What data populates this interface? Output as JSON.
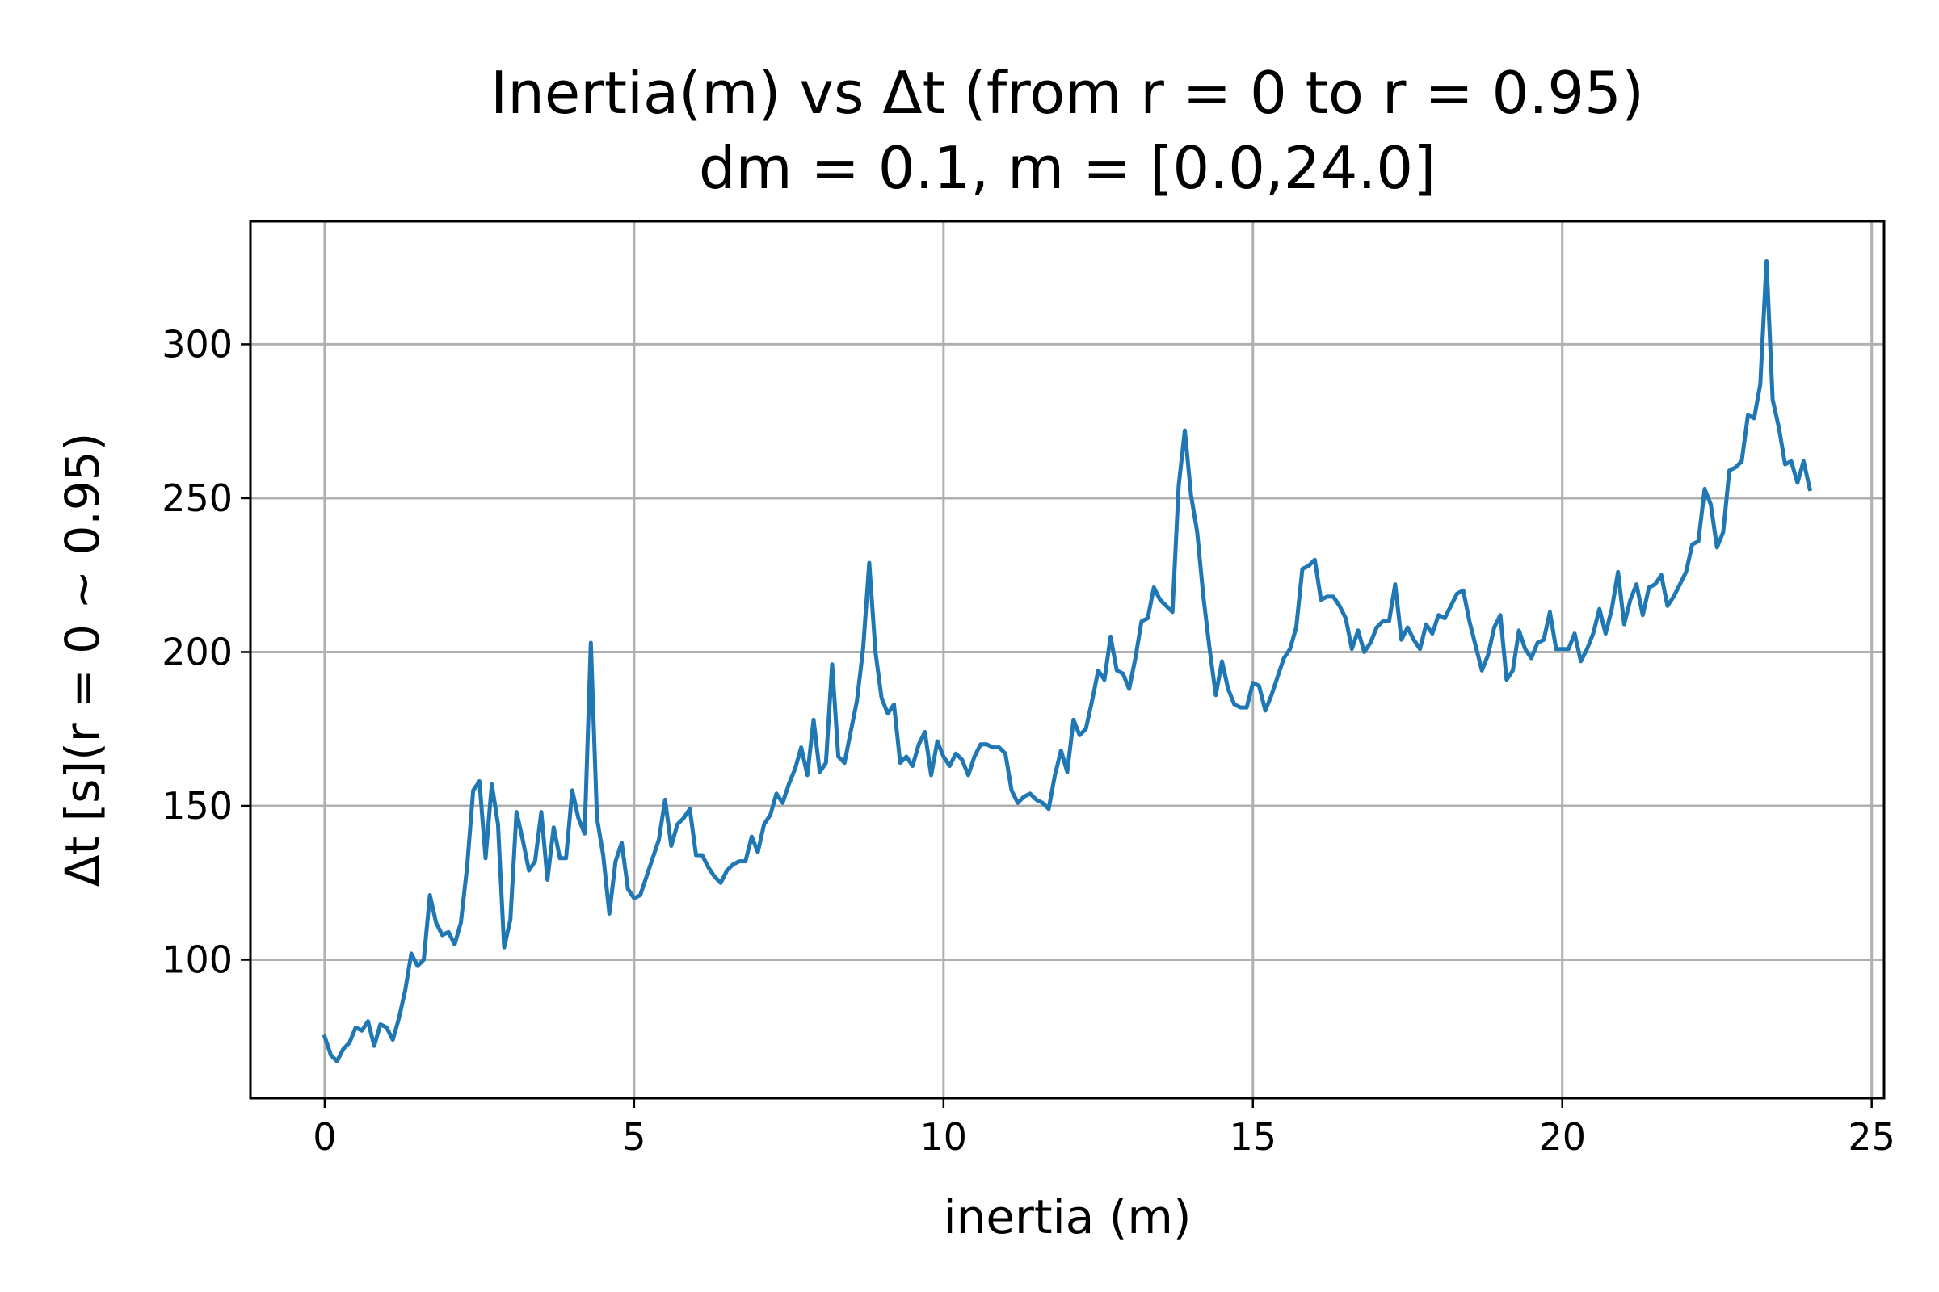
{
  "chart_data": {
    "type": "line",
    "title": "Inertia(m) vs Δt (from r = 0 to r = 0.95)",
    "subtitle": "dm = 0.1, m = [0.0,24.0]",
    "xlabel": "inertia (m)",
    "ylabel": "Δt [s](r = 0 ~ 0.95)",
    "xlim": [
      -1.2,
      25.2
    ],
    "ylim": [
      55,
      340
    ],
    "x_ticks": [
      0,
      5,
      10,
      15,
      20,
      25
    ],
    "y_ticks": [
      100,
      150,
      200,
      250,
      300
    ],
    "grid": true,
    "series_color": "#1f77b4",
    "series": [
      {
        "x": [
          0.0,
          0.1,
          0.2,
          0.3,
          0.4,
          0.5,
          0.6,
          0.7,
          0.8,
          0.9,
          1.0,
          1.1,
          1.2,
          1.3,
          1.4,
          1.5,
          1.6,
          1.7,
          1.8,
          1.9,
          2.0,
          2.1,
          2.2,
          2.3,
          2.4,
          2.5,
          2.6,
          2.7,
          2.8,
          2.9,
          3.0,
          3.1,
          3.2,
          3.3,
          3.4,
          3.5,
          3.6,
          3.7,
          3.8,
          3.9,
          4.0,
          4.1,
          4.2,
          4.3,
          4.4,
          4.5,
          4.6,
          4.7,
          4.8,
          4.9,
          5.0,
          5.1,
          5.2,
          5.3,
          5.4,
          5.5,
          5.6,
          5.7,
          5.8,
          5.9,
          6.0,
          6.1,
          6.2,
          6.3,
          6.4,
          6.5,
          6.6,
          6.7,
          6.8,
          6.9,
          7.0,
          7.1,
          7.2,
          7.3,
          7.4,
          7.5,
          7.6,
          7.7,
          7.8,
          7.9,
          8.0,
          8.1,
          8.2,
          8.3,
          8.4,
          8.5,
          8.6,
          8.7,
          8.8,
          8.9,
          9.0,
          9.1,
          9.2,
          9.3,
          9.4,
          9.5,
          9.6,
          9.7,
          9.8,
          9.9,
          10.0,
          10.1,
          10.2,
          10.3,
          10.4,
          10.5,
          10.6,
          10.7,
          10.8,
          10.9,
          11.0,
          11.1,
          11.2,
          11.3,
          11.4,
          11.5,
          11.6,
          11.7,
          11.8,
          11.9,
          12.0,
          12.1,
          12.2,
          12.3,
          12.4,
          12.5,
          12.6,
          12.7,
          12.8,
          12.9,
          13.0,
          13.1,
          13.2,
          13.3,
          13.4,
          13.5,
          13.6,
          13.7,
          13.8,
          13.9,
          14.0,
          14.1,
          14.2,
          14.3,
          14.4,
          14.5,
          14.6,
          14.7,
          14.8,
          14.9,
          15.0,
          15.1,
          15.2,
          15.3,
          15.4,
          15.5,
          15.6,
          15.7,
          15.8,
          15.9,
          16.0,
          16.1,
          16.2,
          16.3,
          16.4,
          16.5,
          16.6,
          16.7,
          16.8,
          16.9,
          17.0,
          17.1,
          17.2,
          17.3,
          17.4,
          17.5,
          17.6,
          17.7,
          17.8,
          17.9,
          18.0,
          18.1,
          18.2,
          18.3,
          18.4,
          18.5,
          18.6,
          18.7,
          18.8,
          18.9,
          19.0,
          19.1,
          19.2,
          19.3,
          19.4,
          19.5,
          19.6,
          19.7,
          19.8,
          19.9,
          20.0,
          20.1,
          20.2,
          20.3,
          20.4,
          20.5,
          20.6,
          20.7,
          20.8,
          20.9,
          21.0,
          21.1,
          21.2,
          21.3,
          21.4,
          21.5,
          21.6,
          21.7,
          21.8,
          21.9,
          22.0,
          22.1,
          22.2,
          22.3,
          22.4,
          22.5,
          22.6,
          22.7,
          22.8,
          22.9,
          23.0,
          23.1,
          23.2,
          23.3,
          23.4,
          23.5,
          23.6,
          23.7,
          23.8,
          23.9,
          24.0
        ],
        "values": [
          75,
          69,
          67,
          71,
          73,
          78,
          77,
          80,
          72,
          79,
          78,
          74,
          81,
          90,
          102,
          98,
          100,
          121,
          112,
          108,
          109,
          105,
          112,
          130,
          155,
          158,
          133,
          157,
          144,
          104,
          113,
          148,
          139,
          129,
          132,
          148,
          126,
          143,
          133,
          133,
          155,
          146,
          141,
          203,
          146,
          134,
          115,
          132,
          138,
          123,
          120,
          121,
          127,
          133,
          139,
          152,
          137,
          144,
          146,
          149,
          134,
          134,
          130,
          127,
          125,
          129,
          131,
          132,
          132,
          140,
          135,
          144,
          147,
          154,
          151,
          157,
          162,
          169,
          160,
          178,
          161,
          164,
          196,
          166,
          164,
          174,
          184,
          201,
          229,
          200,
          185,
          180,
          183,
          164,
          166,
          163,
          170,
          174,
          160,
          171,
          166,
          163,
          167,
          165,
          160,
          166,
          170,
          170,
          169,
          169,
          167,
          155,
          151,
          153,
          154,
          152,
          151,
          149,
          160,
          168,
          161,
          178,
          173,
          175,
          184,
          194,
          191,
          205,
          194,
          193,
          188,
          198,
          210,
          211,
          221,
          217,
          215,
          213,
          254,
          272,
          251,
          239,
          218,
          201,
          186,
          197,
          188,
          183,
          182,
          182,
          190,
          189,
          181,
          186,
          192,
          198,
          201,
          208,
          227,
          228,
          230,
          217,
          218,
          218,
          215,
          211,
          201,
          207,
          200,
          203,
          208,
          210,
          210,
          222,
          204,
          208,
          204,
          201,
          209,
          206,
          212,
          211,
          215,
          219,
          220,
          210,
          202,
          194,
          199,
          208,
          212,
          191,
          194,
          207,
          201,
          198,
          203,
          204,
          213,
          201,
          201,
          201,
          206,
          197,
          201,
          206,
          214,
          206,
          214,
          226,
          209,
          217,
          222,
          212,
          221,
          222,
          225,
          215,
          218,
          222,
          226,
          235,
          236,
          253,
          248,
          234,
          239,
          259,
          260,
          262,
          277,
          276,
          287,
          327,
          282,
          273,
          261,
          262,
          255,
          262,
          253
        ]
      }
    ]
  }
}
